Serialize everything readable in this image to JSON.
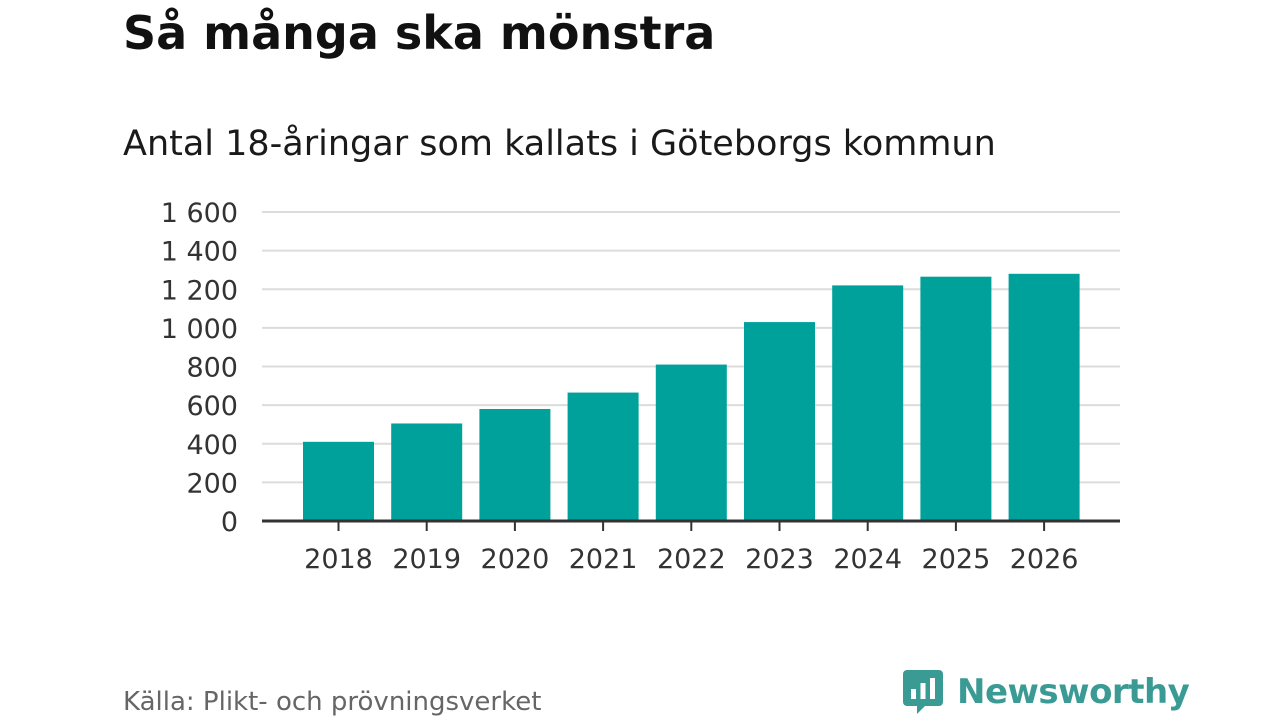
{
  "header": {
    "title": "Så många ska mönstra",
    "subtitle": "Antal 18-åringar som kallats i Göteborgs kommun"
  },
  "chart_data": {
    "type": "bar",
    "title": "Så många ska mönstra",
    "subtitle": "Antal 18-åringar som kallats i Göteborgs kommun",
    "xlabel": "",
    "ylabel": "",
    "categories": [
      "2018",
      "2019",
      "2020",
      "2021",
      "2022",
      "2023",
      "2024",
      "2025",
      "2026"
    ],
    "values": [
      410,
      505,
      580,
      665,
      810,
      1030,
      1220,
      1265,
      1280
    ],
    "ylim": [
      0,
      1600
    ],
    "yticks": [
      0,
      200,
      400,
      600,
      800,
      1000,
      1200,
      1400,
      1600
    ],
    "ytick_labels": [
      "0",
      "200",
      "400",
      "600",
      "800",
      "1 000",
      "1 200",
      "1 400",
      "1 600"
    ],
    "grid": true,
    "bar_color": "#00a19a"
  },
  "footer": {
    "source": "Källa: Plikt- och prövningsverket",
    "brand_name": "Newsworthy",
    "brand_icon": "newsworthy-logo-icon",
    "brand_color": "#3a9a94"
  }
}
